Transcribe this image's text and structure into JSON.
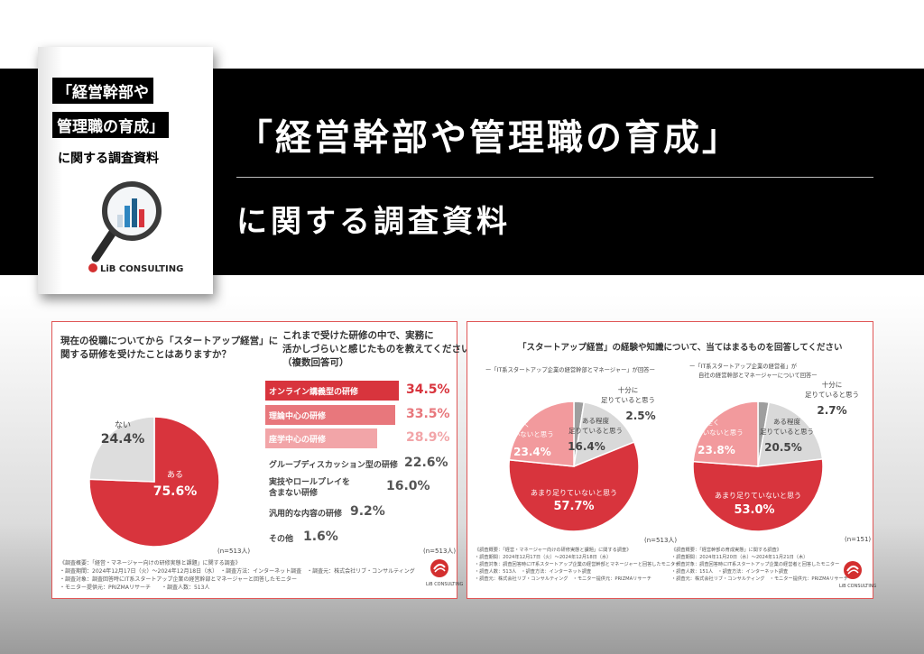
{
  "banner": {
    "title": "「経営幹部や管理職の育成」",
    "subtitle": "に関する調査資料"
  },
  "cover": {
    "line1": "「経営幹部や",
    "line2": "管理職の育成」",
    "line3": "に関する調査資料",
    "logo": "LiB CONSULTING"
  },
  "slide1": {
    "pie_question": [
      "現在の役職についてから「スタートアップ経営」に",
      "関する研修を受けたことはありますか？"
    ],
    "bar_question": [
      "これまで受けた研修の中で、実務に",
      "活かしづらいと感じたものを教えてください",
      "（複数回答可）"
    ],
    "pie_n": "(n=513人)",
    "bar_n": "(n=513人)",
    "footnote": [
      "《調査概要：「経営・マネージャー向けの研修実態と課題」に関する調査》",
      "・調査期間：2024年12月17日（火）～2024年12月18日（水）　・調査方法：インターネット調査　・調査元：株式会社リブ・コンサルティング",
      "・調査対象：調査回答時にIT系スタートアップ企業の経営幹部とマネージャーと回答したモニター",
      "・モニター提供元：PRIZMAリサーチ　　・調査人数：513人"
    ],
    "logo": "LiB CONSULTING"
  },
  "slide2": {
    "title": "「スタートアップ経営」の経験や知識について、当てはまるものを回答してください",
    "left_caption": "ー「IT系スタートアップ企業の経営幹部とマネージャー」が回答ー",
    "right_caption": [
      "ー「IT系スタートアップ企業の経営者」が",
      "自社の経営幹部とマネージャーについて回答ー"
    ],
    "left_n": "(n=513人)",
    "right_n": "(n=151)",
    "footnote_left": [
      "《調査概要：「経営・マネージャー向けの研修実態と課題」に関する調査》",
      "・調査期間：2024年12月17日（火）～2024年12月18日（水）",
      "・調査対象：調査回答時にIT系スタートアップ企業の経営幹部とマネージャーと回答したモニター",
      "・調査人数：513人　・調査方法：インターネット調査",
      "・調査元：株式会社リブ・コンサルティング　・モニター提供元：PRIZMAリサーチ"
    ],
    "footnote_right": [
      "《調査概要：「経営幹部の育成実態」に関する調査》",
      "・調査期間：2024年11月20日（水）～2024年11月21日（木）",
      "・調査対象：調査回答時にIT系スタートアップ企業の経営者と回答したモニター",
      "・調査人数：151人　・調査方法：インターネット調査",
      "・調査元：株式会社リブ・コンサルティング　・モニター提供元：PRIZMAリサーチ"
    ],
    "logo": "LiB CONSULTING"
  },
  "chart_data": [
    {
      "type": "pie",
      "question": "現在の役職についてから「スタートアップ経営」に関する研修を受けたことはありますか？",
      "labels": [
        "ある",
        "ない"
      ],
      "values": [
        75.6,
        24.4
      ],
      "value_labels": [
        "75.6%",
        "24.4%"
      ],
      "colors": [
        "#d8343d",
        "#dddddd"
      ]
    },
    {
      "type": "bar",
      "question": "これまで受けた研修の中で、実務に活かしづらいと感じたものを教えてください（複数回答可）",
      "categories": [
        "オンライン講義型の研修",
        "理論中心の研修",
        "座学中心の研修",
        "グループディスカッション型の研修",
        "実技やロールプレイを含まない研修",
        "汎用的な内容の研修",
        "その他"
      ],
      "category_lines": [
        [
          "オンライン講義型の研修"
        ],
        [
          "理論中心の研修"
        ],
        [
          "座学中心の研修"
        ],
        [
          "グループディスカッション型の研修"
        ],
        [
          "実技やロールプレイを",
          "含まない研修"
        ],
        [
          "汎用的な内容の研修"
        ],
        [
          "その他"
        ]
      ],
      "values": [
        34.5,
        33.5,
        28.9,
        22.6,
        16.0,
        9.2,
        1.6
      ],
      "value_labels": [
        "34.5%",
        "33.5%",
        "28.9%",
        "22.6%",
        "16.0%",
        "9.2%",
        "1.6%"
      ],
      "colors": [
        "#d8343d",
        "#e8777c",
        "#f2a5a8",
        "#e2e2e2",
        "#eeeeee",
        "#f4f4f4",
        "#f7f7f7"
      ]
    },
    {
      "type": "pie",
      "labels": [
        "十分に足りていると思う",
        "ある程度足りていると思う",
        "あまり足りていないと思う",
        "全く足りていないと思う"
      ],
      "values": [
        2.5,
        16.4,
        57.7,
        23.4
      ],
      "value_labels": [
        "2.5%",
        "16.4%",
        "57.7%",
        "23.4%"
      ],
      "colors": [
        "#9e9e9e",
        "#d9d9d9",
        "#d8343d",
        "#f29a9d"
      ]
    },
    {
      "type": "pie",
      "labels": [
        "十分に足りていると思う",
        "ある程度足りていると思う",
        "あまり足りていないと思う",
        "全く足りていないと思う"
      ],
      "values": [
        2.7,
        20.5,
        53.0,
        23.8
      ],
      "value_labels": [
        "2.7%",
        "20.5%",
        "53.0%",
        "23.8%"
      ],
      "colors": [
        "#9e9e9e",
        "#d9d9d9",
        "#d8343d",
        "#f29a9d"
      ]
    }
  ]
}
